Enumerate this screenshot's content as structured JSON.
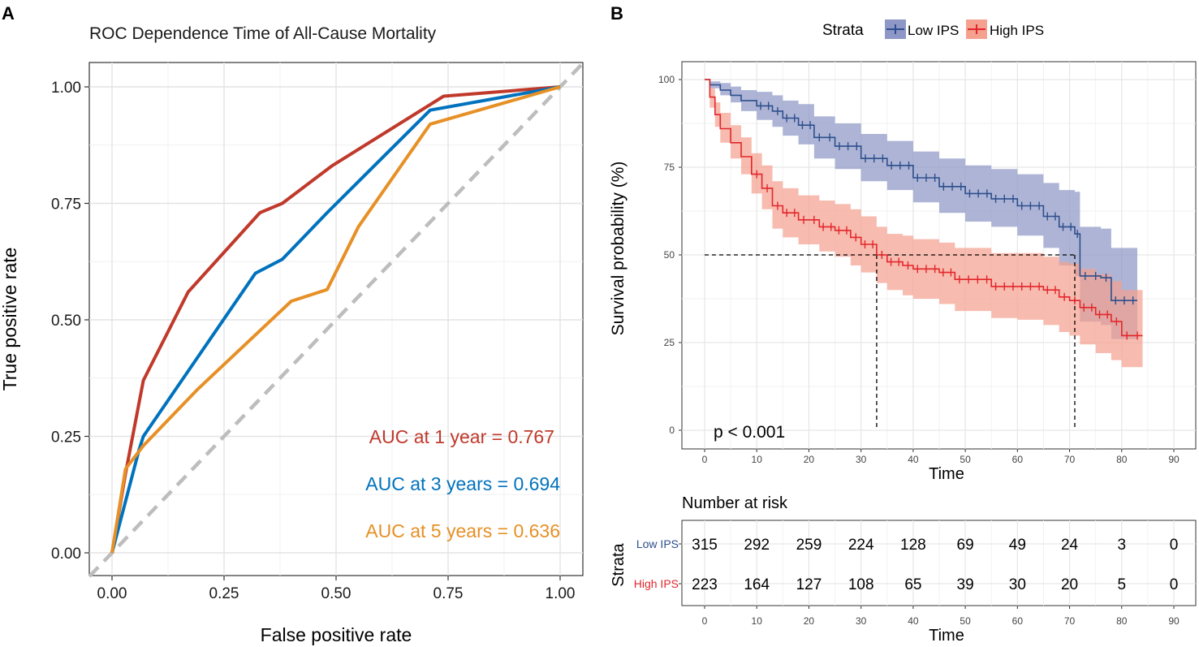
{
  "panels": {
    "a_label": "A",
    "b_label": "B"
  },
  "colors": {
    "auc1": "#C0392B",
    "auc3": "#0072BD",
    "auc5": "#E69026",
    "diag": "#BDBDBD",
    "low": "#2C4F8C",
    "high": "#E3262B",
    "low_band": "#8F97C6",
    "high_band": "#F4A190"
  },
  "chart_data": [
    {
      "type": "line",
      "title": "ROC Dependence Time of All-Cause Mortality",
      "xlabel": "False positive rate",
      "ylabel": "True positive rate",
      "xlim": [
        0,
        1
      ],
      "ylim": [
        0,
        1
      ],
      "xticks": [
        "0.00",
        "0.25",
        "0.50",
        "0.75",
        "1.00"
      ],
      "yticks": [
        "0.00",
        "0.25",
        "0.50",
        "0.75",
        "1.00"
      ],
      "grid": true,
      "series": [
        {
          "name": "AUC at 1 year = 0.767",
          "color_key": "auc1",
          "x": [
            0,
            0.03,
            0.07,
            0.17,
            0.33,
            0.38,
            0.49,
            0.74,
            1.0
          ],
          "y": [
            0,
            0.17,
            0.37,
            0.56,
            0.73,
            0.75,
            0.83,
            0.98,
            1.0
          ]
        },
        {
          "name": "AUC at 3 years = 0.694",
          "color_key": "auc3",
          "x": [
            0,
            0.06,
            0.07,
            0.32,
            0.38,
            0.48,
            0.71,
            1.0
          ],
          "y": [
            0,
            0.22,
            0.25,
            0.6,
            0.63,
            0.73,
            0.95,
            1.0
          ],
          "dummy": false
        },
        {
          "name": "AUC at 5 years = 0.636",
          "color_key": "auc5",
          "x": [
            0,
            0.03,
            0.07,
            0.19,
            0.4,
            0.48,
            0.55,
            0.71,
            1.0
          ],
          "y": [
            0,
            0.18,
            0.23,
            0.35,
            0.54,
            0.565,
            0.7,
            0.92,
            1.0
          ]
        }
      ]
    },
    {
      "type": "line",
      "legend_title": "Strata",
      "xlabel": "Time",
      "ylabel": "Survival probability (%)",
      "xlim": [
        0,
        90
      ],
      "ylim": [
        0,
        100
      ],
      "xticks": [
        "0",
        "10",
        "20",
        "30",
        "40",
        "50",
        "60",
        "70",
        "80",
        "90"
      ],
      "yticks": [
        "0",
        "25",
        "50",
        "75",
        "100"
      ],
      "pvalue": "p < 0.001",
      "median_survival": {
        "Low IPS": 71,
        "High IPS": 33
      },
      "series": [
        {
          "name": "Low IPS",
          "color_key": "low",
          "x": [
            0,
            1,
            3,
            5,
            7,
            10,
            13,
            15,
            18,
            21,
            25,
            30,
            35,
            40,
            45,
            50,
            55,
            60,
            65,
            68,
            71,
            72,
            76,
            78,
            83
          ],
          "y": [
            100,
            98.5,
            97,
            95.5,
            94,
            92.5,
            91,
            89,
            87,
            83.5,
            81,
            77.5,
            75.5,
            72,
            69.5,
            67.5,
            66,
            64,
            61,
            58,
            56,
            44,
            43.5,
            37,
            37
          ],
          "lower": [
            100,
            97.5,
            95.5,
            93.5,
            91,
            88.5,
            86.5,
            84,
            81.5,
            77.5,
            74.5,
            71,
            68.5,
            65,
            62,
            59.5,
            58,
            55.5,
            52,
            47,
            44,
            31,
            30,
            26,
            26
          ],
          "upper": [
            100,
            99.5,
            99,
            98,
            97,
            96.5,
            95.5,
            94,
            93,
            89.5,
            87.5,
            84.5,
            82.5,
            79.5,
            77.5,
            75.5,
            74.5,
            73,
            70.5,
            68.5,
            68,
            58,
            57.5,
            52,
            52
          ]
        },
        {
          "name": "High IPS",
          "color_key": "high",
          "x": [
            0,
            1,
            2,
            3,
            5,
            7,
            9,
            11,
            13,
            15,
            18,
            22,
            25,
            28,
            30,
            33,
            35,
            38,
            40,
            45,
            48,
            55,
            60,
            65,
            68,
            70,
            72,
            75,
            78,
            80,
            84
          ],
          "y": [
            100,
            95,
            90,
            86,
            82,
            78,
            73,
            69,
            64,
            62,
            60,
            58,
            57,
            55,
            53,
            50,
            48,
            47,
            46,
            45,
            43,
            41,
            41,
            40,
            38,
            37,
            35,
            33,
            31,
            27,
            27
          ],
          "lower": [
            100,
            92,
            86.5,
            82,
            77.5,
            73,
            67.5,
            63,
            57.5,
            55,
            53,
            51,
            49.5,
            47,
            45,
            42,
            40,
            38.5,
            37.5,
            36,
            34,
            32,
            31.5,
            30,
            28,
            27,
            24.5,
            22,
            20,
            18,
            18
          ],
          "upper": [
            100,
            97.5,
            93.5,
            90.5,
            87,
            83.5,
            79,
            75.5,
            71,
            69,
            67,
            65.5,
            64.5,
            63,
            61,
            58,
            56,
            55.5,
            54.5,
            53.5,
            52,
            50.5,
            50.5,
            49.5,
            48,
            47.5,
            46,
            44.5,
            42.5,
            40,
            40
          ]
        }
      ]
    },
    {
      "type": "table",
      "title": "Number at risk",
      "xlabel": "Time",
      "ylabel": "Strata",
      "xticks": [
        "0",
        "10",
        "20",
        "30",
        "40",
        "50",
        "60",
        "70",
        "80",
        "90"
      ],
      "rows": [
        {
          "name": "Low IPS",
          "color_key": "low",
          "values": [
            "315",
            "292",
            "259",
            "224",
            "128",
            "69",
            "49",
            "24",
            "3",
            "0"
          ]
        },
        {
          "name": "High IPS",
          "color_key": "high",
          "values": [
            "223",
            "164",
            "127",
            "108",
            "65",
            "39",
            "30",
            "20",
            "5",
            "0"
          ]
        }
      ]
    }
  ]
}
